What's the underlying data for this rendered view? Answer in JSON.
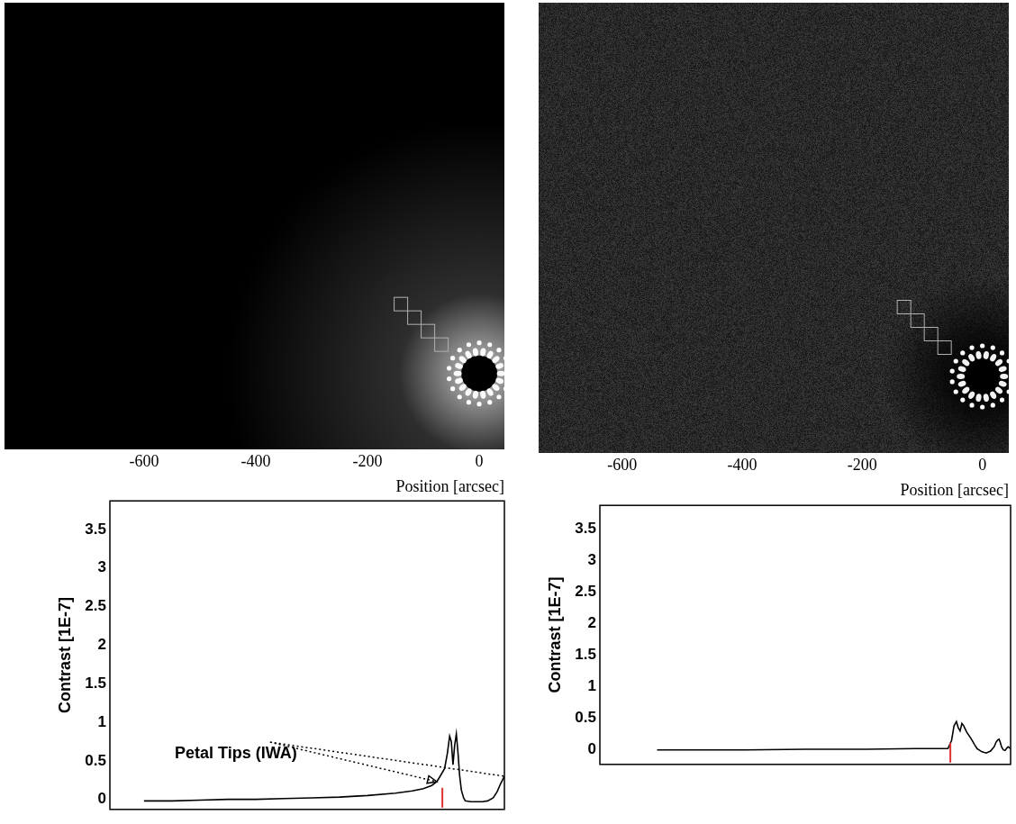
{
  "chart_data": [
    {
      "type": "image",
      "xlim": [
        -850,
        45
      ],
      "xticks": [
        -600,
        -400,
        -200,
        0
      ],
      "xlabel": "Position [arcsec]",
      "source_x": 0,
      "tick_labels": "x"
    },
    {
      "type": "image",
      "xlim": [
        -739,
        44
      ],
      "xticks": [
        -600,
        -400,
        -200,
        0
      ],
      "xlabel": "Position [arcsec]",
      "source_x": 0,
      "tick_labels": "x"
    },
    {
      "type": "line",
      "ylabel": "Contrast [1E-7]",
      "xlim": [
        -661,
        45
      ],
      "ylim": [
        -0.13,
        3.87
      ],
      "yticks": [
        0,
        0.5,
        1,
        1.5,
        2,
        2.5,
        3,
        3.5
      ],
      "tick_labels": "y",
      "color": "#000000",
      "x": [
        -600,
        -550,
        -500,
        -450,
        -400,
        -350,
        -300,
        -250,
        -200,
        -150,
        -120,
        -100,
        -85,
        -76,
        -70,
        -62,
        -57,
        -53,
        -50,
        -47,
        -44,
        -41,
        -38,
        -35,
        -32,
        -28,
        -25,
        -15,
        -5,
        5,
        15,
        25,
        32,
        38,
        45
      ],
      "values": [
        -0.02,
        -0.02,
        -0.01,
        0.0,
        0.0,
        0.01,
        0.02,
        0.03,
        0.05,
        0.08,
        0.11,
        0.14,
        0.18,
        0.23,
        0.3,
        0.4,
        0.6,
        0.82,
        0.75,
        0.45,
        0.7,
        0.85,
        0.6,
        0.3,
        0.12,
        0.02,
        -0.02,
        -0.03,
        -0.03,
        -0.03,
        -0.02,
        0.02,
        0.1,
        0.2,
        0.3
      ],
      "iwa_marker": {
        "x": -66,
        "color": "#e03030"
      },
      "annotation": {
        "text": "Petal Tips (IWA)",
        "points": [
          {
            "x": -76,
            "y": 0.23
          },
          {
            "x": 45,
            "y": 0.3
          }
        ]
      }
    },
    {
      "type": "line",
      "ylabel": "Contrast [1E-7]",
      "xlim": [
        -638,
        37
      ],
      "ylim": [
        -0.23,
        3.88
      ],
      "yticks": [
        0,
        0.5,
        1,
        1.5,
        2,
        2.5,
        3,
        3.5
      ],
      "tick_labels": "y",
      "color": "#000000",
      "x": [
        -544,
        -500,
        -400,
        -300,
        -200,
        -120,
        -80,
        -66,
        -60,
        -56,
        -52,
        -49,
        -46,
        -43,
        -40,
        -35,
        -28,
        -22,
        -18,
        -10,
        -3,
        4,
        10,
        13,
        16,
        18,
        20,
        22,
        25,
        28,
        31,
        33,
        37
      ],
      "values": [
        0,
        0,
        0,
        0.01,
        0.01,
        0.02,
        0.02,
        0.02,
        0.15,
        0.38,
        0.45,
        0.35,
        0.3,
        0.42,
        0.38,
        0.28,
        0.18,
        0.08,
        0.02,
        -0.03,
        -0.05,
        -0.02,
        0.05,
        0.12,
        0.16,
        0.17,
        0.12,
        0.05,
        0.0,
        -0.01,
        0.03,
        0.05,
        0.02
      ],
      "iwa_marker": {
        "x": -62,
        "color": "#e03030"
      }
    }
  ]
}
